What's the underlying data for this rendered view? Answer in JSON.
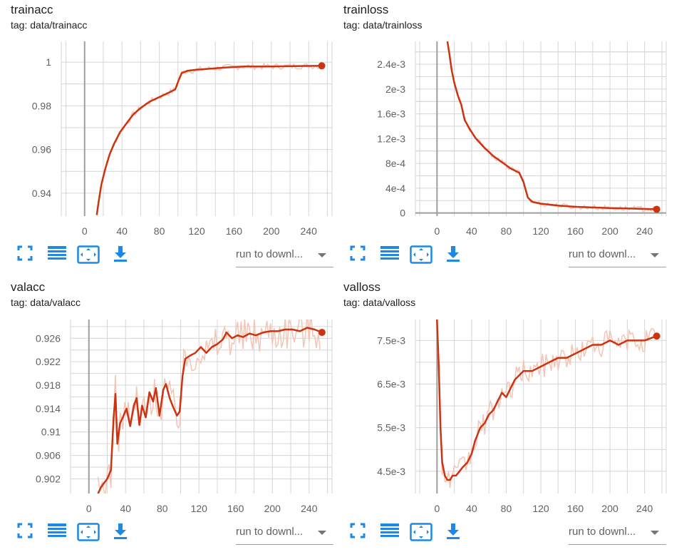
{
  "colors": {
    "accent": "#e64a19",
    "line": "#cc3311",
    "raw": "#f4c4b4",
    "icon": "#1e88e5"
  },
  "toolbar": {
    "run_select_label": "run to downl..."
  },
  "icons": [
    "fullscreen-icon",
    "data-table-icon",
    "fit-domain-icon",
    "download-icon"
  ],
  "cards": [
    {
      "title": "trainacc",
      "tag": "tag: data/trainacc"
    },
    {
      "title": "trainloss",
      "tag": "tag: data/trainloss"
    },
    {
      "title": "valacc",
      "tag": "tag: data/valacc"
    },
    {
      "title": "valloss",
      "tag": "tag: data/valloss"
    }
  ],
  "chart_data": [
    {
      "type": "line",
      "title": "trainacc",
      "xlim": [
        -25,
        265
      ],
      "ylim": [
        0.9295,
        1.0095
      ],
      "xticks": [
        0,
        40,
        80,
        120,
        160,
        200,
        240
      ],
      "yticks": [
        0.94,
        0.96,
        0.98,
        1
      ],
      "ytick_labels": [
        "0.94",
        "0.96",
        "0.98",
        "1"
      ],
      "grid": true,
      "series": [
        {
          "smoothed": [
            [
              13,
              0.93
            ],
            [
              15,
              0.936
            ],
            [
              18,
              0.944
            ],
            [
              22,
              0.951
            ],
            [
              27,
              0.958
            ],
            [
              32,
              0.963
            ],
            [
              38,
              0.968
            ],
            [
              45,
              0.972
            ],
            [
              52,
              0.976
            ],
            [
              60,
              0.979
            ],
            [
              70,
              0.982
            ],
            [
              80,
              0.984
            ],
            [
              90,
              0.986
            ],
            [
              97,
              0.9875
            ],
            [
              101,
              0.992
            ],
            [
              104,
              0.995
            ],
            [
              110,
              0.996
            ],
            [
              120,
              0.9965
            ],
            [
              135,
              0.997
            ],
            [
              150,
              0.9975
            ],
            [
              170,
              0.998
            ],
            [
              200,
              0.998
            ],
            [
              230,
              0.9982
            ],
            [
              254,
              0.9983
            ]
          ],
          "end": [
            254,
            0.9983
          ]
        }
      ]
    },
    {
      "type": "line",
      "title": "trainloss",
      "xlim": [
        -25,
        265
      ],
      "ylim": [
        -5e-05,
        0.00277
      ],
      "xticks": [
        0,
        40,
        80,
        120,
        160,
        200,
        240
      ],
      "yticks": [
        0,
        0.0004,
        0.0008,
        0.0012,
        0.0016,
        0.002,
        0.0024
      ],
      "ytick_labels": [
        "0",
        "4e-4",
        "8e-4",
        "1.2e-3",
        "1.6e-3",
        "2e-3",
        "2.4e-3"
      ],
      "grid": true,
      "series": [
        {
          "smoothed": [
            [
              12,
              0.00277
            ],
            [
              14,
              0.0026
            ],
            [
              17,
              0.0023
            ],
            [
              20,
              0.0021
            ],
            [
              24,
              0.0019
            ],
            [
              28,
              0.00175
            ],
            [
              32,
              0.0015
            ],
            [
              38,
              0.00135
            ],
            [
              45,
              0.0012
            ],
            [
              55,
              0.00105
            ],
            [
              65,
              0.00092
            ],
            [
              75,
              0.00082
            ],
            [
              85,
              0.00072
            ],
            [
              95,
              0.00065
            ],
            [
              100,
              0.0005
            ],
            [
              105,
              0.00025
            ],
            [
              110,
              0.00018
            ],
            [
              120,
              0.00015
            ],
            [
              140,
              0.00012
            ],
            [
              160,
              0.0001
            ],
            [
              200,
              8e-05
            ],
            [
              230,
              7e-05
            ],
            [
              254,
              6e-05
            ]
          ],
          "end": [
            254,
            6e-05
          ]
        }
      ]
    },
    {
      "type": "line",
      "title": "valacc",
      "xlim": [
        -20,
        265
      ],
      "ylim": [
        0.8995,
        0.9292
      ],
      "xticks": [
        0,
        40,
        80,
        120,
        160,
        200,
        240
      ],
      "yticks": [
        0.902,
        0.906,
        0.91,
        0.914,
        0.918,
        0.922,
        0.926
      ],
      "ytick_labels": [
        "0.902",
        "0.906",
        "0.91",
        "0.914",
        "0.918",
        "0.922",
        "0.926"
      ],
      "grid": true,
      "series": [
        {
          "smoothed": [
            [
              10,
              0.8995
            ],
            [
              13,
              0.9005
            ],
            [
              16,
              0.9012
            ],
            [
              20,
              0.902
            ],
            [
              24,
              0.9035
            ],
            [
              27,
              0.9125
            ],
            [
              29,
              0.9165
            ],
            [
              31,
              0.908
            ],
            [
              34,
              0.9115
            ],
            [
              37,
              0.9125
            ],
            [
              41,
              0.914
            ],
            [
              45,
              0.911
            ],
            [
              49,
              0.9145
            ],
            [
              52,
              0.9158
            ],
            [
              55,
              0.9112
            ],
            [
              58,
              0.9145
            ],
            [
              62,
              0.9125
            ],
            [
              66,
              0.9168
            ],
            [
              70,
              0.9152
            ],
            [
              73,
              0.9175
            ],
            [
              77,
              0.9128
            ],
            [
              81,
              0.9172
            ],
            [
              84,
              0.9182
            ],
            [
              88,
              0.9158
            ],
            [
              92,
              0.9142
            ],
            [
              96,
              0.9128
            ],
            [
              99,
              0.9135
            ],
            [
              102,
              0.9195
            ],
            [
              105,
              0.9225
            ],
            [
              110,
              0.923
            ],
            [
              116,
              0.9235
            ],
            [
              122,
              0.9245
            ],
            [
              128,
              0.9235
            ],
            [
              134,
              0.9245
            ],
            [
              140,
              0.925
            ],
            [
              146,
              0.9258
            ],
            [
              150,
              0.927
            ],
            [
              156,
              0.926
            ],
            [
              162,
              0.9265
            ],
            [
              168,
              0.9262
            ],
            [
              175,
              0.9268
            ],
            [
              182,
              0.9265
            ],
            [
              190,
              0.927
            ],
            [
              198,
              0.9272
            ],
            [
              206,
              0.9272
            ],
            [
              214,
              0.9275
            ],
            [
              222,
              0.9275
            ],
            [
              230,
              0.9272
            ],
            [
              238,
              0.9278
            ],
            [
              246,
              0.9275
            ],
            [
              254,
              0.927
            ]
          ],
          "end": [
            254,
            0.927
          ]
        }
      ]
    },
    {
      "type": "line",
      "title": "valloss",
      "xlim": [
        -25,
        265
      ],
      "ylim": [
        0.00399,
        0.00798
      ],
      "xticks": [
        0,
        40,
        80,
        120,
        160,
        200,
        240
      ],
      "yticks": [
        0.0045,
        0.0055,
        0.0065,
        0.0075
      ],
      "ytick_labels": [
        "4.5e-3",
        "5.5e-3",
        "6.5e-3",
        "7.5e-3"
      ],
      "grid": true,
      "series": [
        {
          "smoothed": [
            [
              0,
              0.00798
            ],
            [
              2,
              0.0069
            ],
            [
              4,
              0.0055
            ],
            [
              6,
              0.0047
            ],
            [
              9,
              0.0044
            ],
            [
              12,
              0.0043
            ],
            [
              15,
              0.0043
            ],
            [
              18,
              0.0044
            ],
            [
              22,
              0.0044
            ],
            [
              26,
              0.0045
            ],
            [
              30,
              0.0046
            ],
            [
              35,
              0.0047
            ],
            [
              40,
              0.0049
            ],
            [
              44,
              0.0052
            ],
            [
              50,
              0.0055
            ],
            [
              55,
              0.0056
            ],
            [
              60,
              0.0058
            ],
            [
              65,
              0.0059
            ],
            [
              70,
              0.0061
            ],
            [
              75,
              0.0063
            ],
            [
              80,
              0.0062
            ],
            [
              85,
              0.0064
            ],
            [
              90,
              0.0066
            ],
            [
              95,
              0.0067
            ],
            [
              100,
              0.0068
            ],
            [
              110,
              0.0068
            ],
            [
              120,
              0.0069
            ],
            [
              130,
              0.007
            ],
            [
              140,
              0.0071
            ],
            [
              150,
              0.0071
            ],
            [
              160,
              0.0072
            ],
            [
              170,
              0.0073
            ],
            [
              180,
              0.0074
            ],
            [
              190,
              0.0074
            ],
            [
              200,
              0.0075
            ],
            [
              210,
              0.0074
            ],
            [
              220,
              0.0075
            ],
            [
              230,
              0.0075
            ],
            [
              240,
              0.0075
            ],
            [
              254,
              0.0076
            ]
          ],
          "end": [
            254,
            0.0076
          ]
        }
      ]
    }
  ]
}
